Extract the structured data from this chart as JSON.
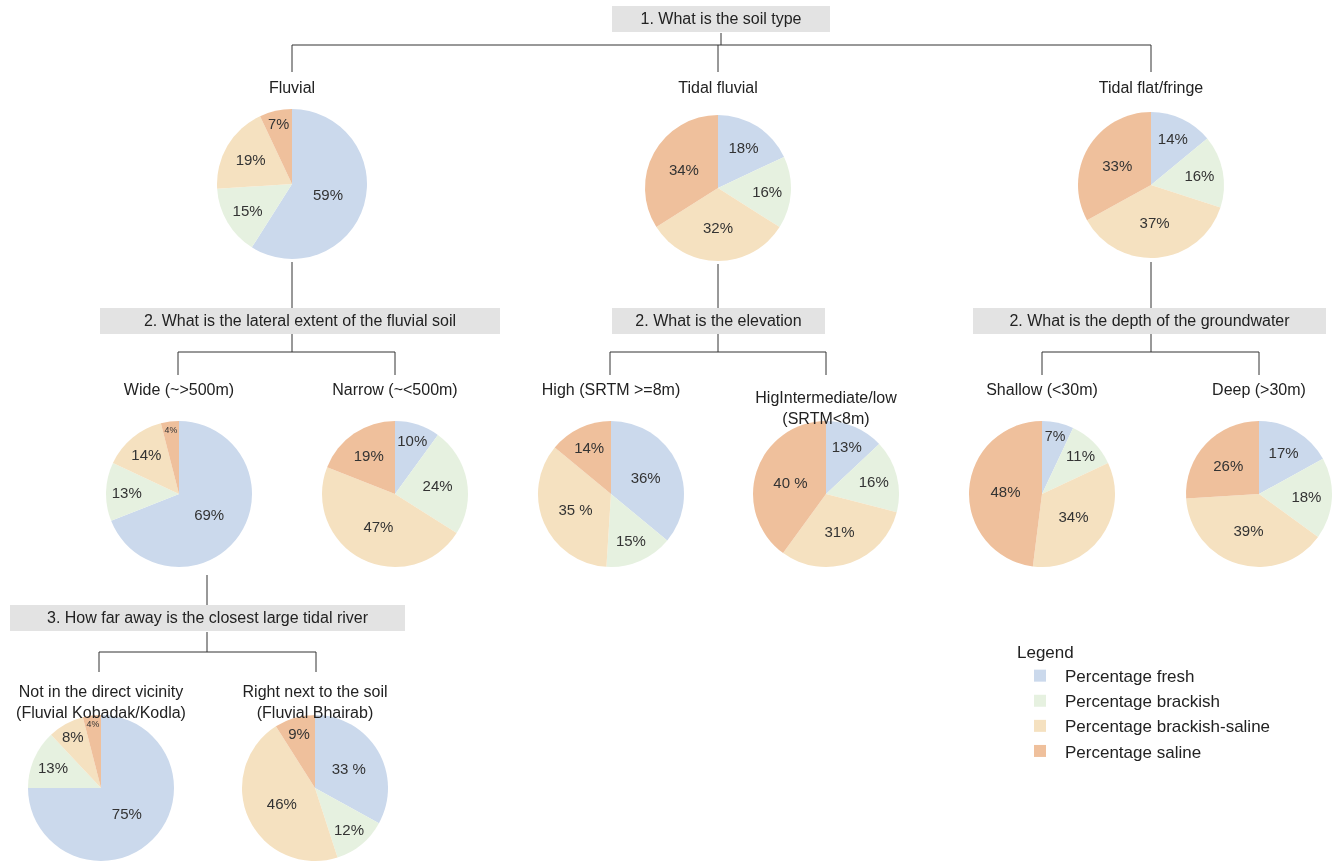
{
  "chart_data": [
    {
      "type": "pie",
      "title": "Fluvial",
      "annotations": [
        "1. What is the soil type",
        "2. What is the lateral extent of the fluvial soil"
      ],
      "categories": [
        null,
        null,
        null,
        null
      ],
      "values": [
        59,
        15,
        19,
        7
      ],
      "value_labels": [
        "59%",
        "15%",
        "19%",
        "7%"
      ],
      "colors": [
        "#cbd9ec",
        "#e6f1e0",
        "#f5e1c0",
        "#efc09c"
      ]
    },
    {
      "type": "pie",
      "title": "Tidal fluvial",
      "annotations": [
        "2. What is the elevation"
      ],
      "categories": [
        null,
        null,
        null,
        null
      ],
      "values": [
        18,
        16,
        32,
        34
      ],
      "value_labels": [
        "18%",
        "16%",
        "32%",
        "34%"
      ],
      "colors": [
        "#cbd9ec",
        "#e6f1e0",
        "#f5e1c0",
        "#efc09c"
      ]
    },
    {
      "type": "pie",
      "title": "Tidal flat/fringe",
      "annotations": [
        "2. What is the depth of the groundwater"
      ],
      "categories": [
        null,
        null,
        null,
        null
      ],
      "values": [
        14,
        16,
        37,
        33
      ],
      "value_labels": [
        "14%",
        "16%",
        "37%",
        "33%"
      ],
      "colors": [
        "#cbd9ec",
        "#e6f1e0",
        "#f5e1c0",
        "#efc09c"
      ]
    },
    {
      "type": "pie",
      "title": "Wide (~>500m)",
      "annotations": [
        "3. How far away is the closest large tidal river"
      ],
      "categories": [
        null,
        null,
        null,
        null
      ],
      "values": [
        69,
        13,
        14,
        4
      ],
      "value_labels": [
        "69%",
        "13%",
        "14%",
        "4%"
      ],
      "colors": [
        "#cbd9ec",
        "#e6f1e0",
        "#f5e1c0",
        "#efc09c"
      ]
    },
    {
      "type": "pie",
      "title": "Narrow (~<500m)",
      "categories": [
        null,
        null,
        null,
        null
      ],
      "values": [
        10,
        24,
        47,
        19
      ],
      "value_labels": [
        "10%",
        "24%",
        "47%",
        "19%"
      ],
      "colors": [
        "#cbd9ec",
        "#e6f1e0",
        "#f5e1c0",
        "#efc09c"
      ]
    },
    {
      "type": "pie",
      "title": "High (SRTM >=8m)",
      "categories": [
        null,
        null,
        null,
        null
      ],
      "values": [
        36,
        15,
        35,
        14
      ],
      "value_labels": [
        "36%",
        "15%",
        "35 %",
        "14%"
      ],
      "colors": [
        "#cbd9ec",
        "#e6f1e0",
        "#f5e1c0",
        "#efc09c"
      ]
    },
    {
      "type": "pie",
      "title": "HigIntermediate/low\n(SRTM<8m)",
      "categories": [
        null,
        null,
        null,
        null
      ],
      "values": [
        13,
        16,
        31,
        40
      ],
      "value_labels": [
        "13%",
        "16%",
        "31%",
        "40 %"
      ],
      "colors": [
        "#cbd9ec",
        "#e6f1e0",
        "#f5e1c0",
        "#efc09c"
      ]
    },
    {
      "type": "pie",
      "title": "Shallow (<30m)",
      "categories": [
        null,
        null,
        null,
        null
      ],
      "values": [
        7,
        11,
        34,
        48
      ],
      "value_labels": [
        "7%",
        "11%",
        "34%",
        "48%"
      ],
      "colors": [
        "#cbd9ec",
        "#e6f1e0",
        "#f5e1c0",
        "#efc09c"
      ]
    },
    {
      "type": "pie",
      "title": "Deep (>30m)",
      "legend": "bottom left",
      "legend_title": "Legend",
      "categories": [
        "Percentage fresh",
        "Percentage brackish",
        "Percentage brackish-saline",
        "Percentage saline"
      ],
      "values": [
        17,
        18,
        39,
        26
      ],
      "value_labels": [
        "17%",
        "18%",
        "39%",
        "26%"
      ],
      "colors": [
        "#cbd9ec",
        "#e6f1e0",
        "#f5e1c0",
        "#efc09c"
      ]
    },
    {
      "type": "pie",
      "title": "Not in the direct vicinity\n(Fluvial Kobadak/Kodla)",
      "categories": [
        null,
        null,
        null,
        null
      ],
      "values": [
        75,
        13,
        8,
        4
      ],
      "value_labels": [
        "75%",
        "13%",
        "8%",
        "4%"
      ],
      "colors": [
        "#cbd9ec",
        "#e6f1e0",
        "#f5e1c0",
        "#efc09c"
      ]
    },
    {
      "type": "pie",
      "title": "Right next to the soil\n(Fluvial Bhairab)",
      "categories": [
        null,
        null,
        null,
        null
      ],
      "values": [
        33,
        12,
        46,
        9
      ],
      "value_labels": [
        "33 %",
        "12%",
        "46%",
        "9%"
      ],
      "colors": [
        "#cbd9ec",
        "#e6f1e0",
        "#f5e1c0",
        "#efc09c"
      ]
    }
  ]
}
